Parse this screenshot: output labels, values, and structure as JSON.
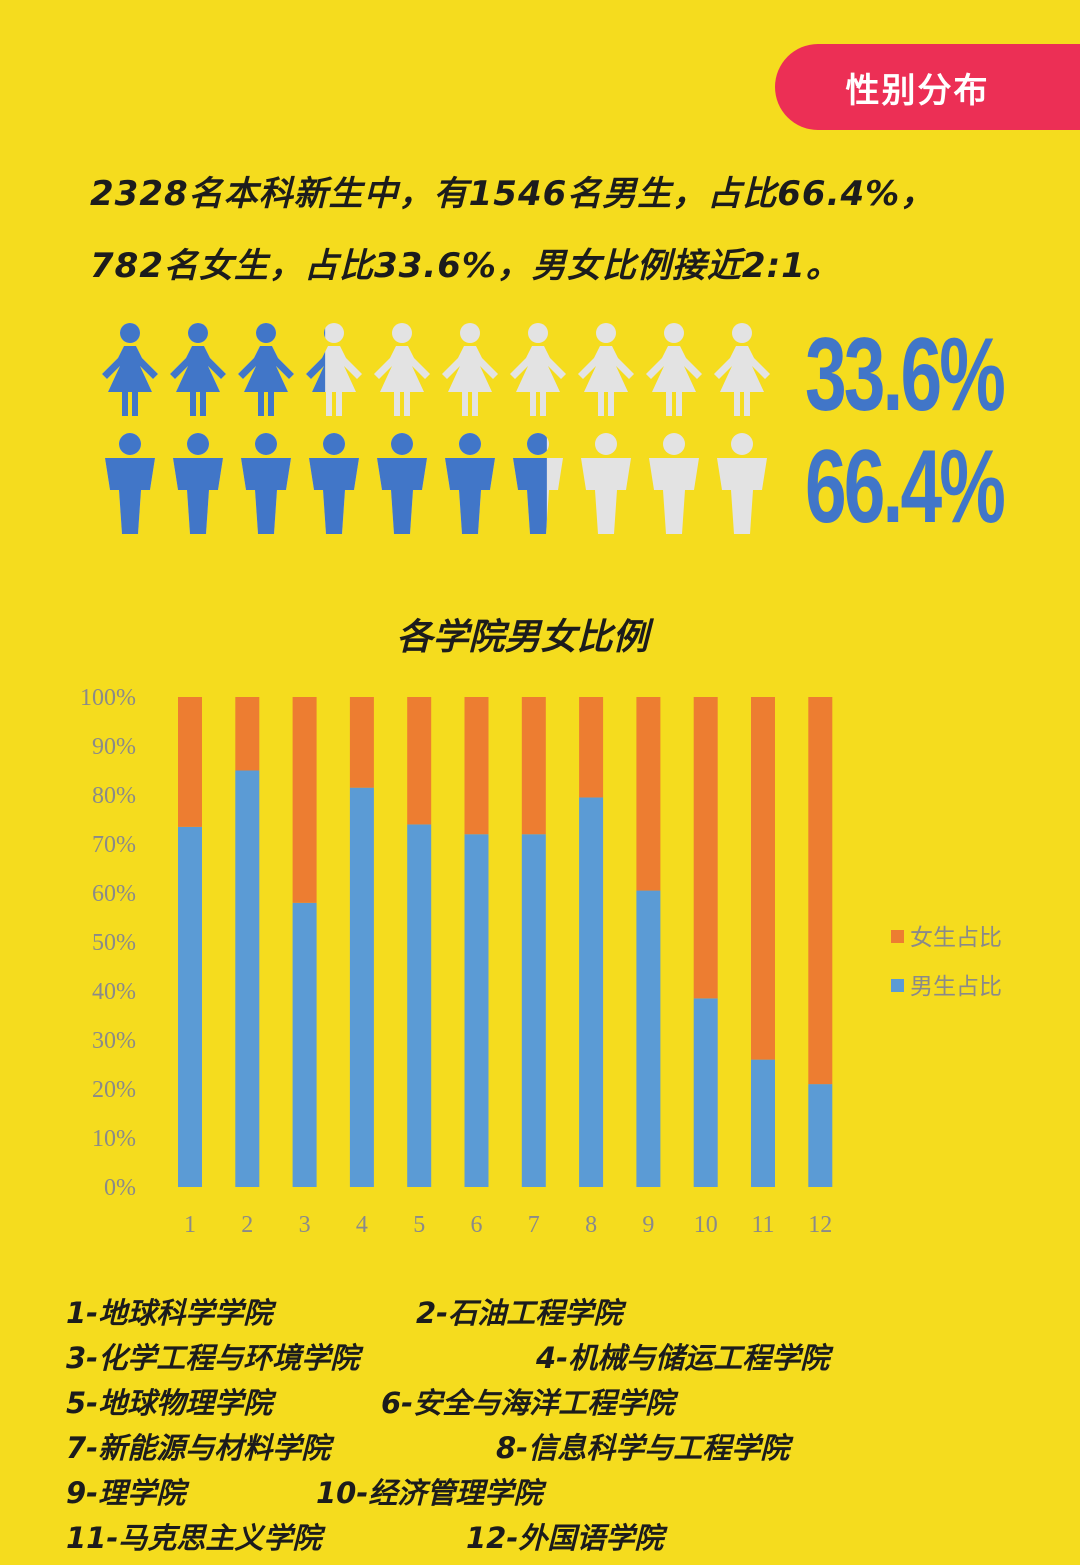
{
  "header": {
    "tag_label": "性别分布"
  },
  "intro": {
    "line1": "2328名本科新生中，有1546名男生，占比66.4%，",
    "line2": "782名女生，占比33.6%，男女比例接近2:1。"
  },
  "gender": {
    "female_pct_label": "33.6%",
    "male_pct_label": "66.4%",
    "female_fraction": 0.336,
    "male_fraction": 0.664,
    "icons_per_row": 10
  },
  "colors": {
    "background": "#f5dc1e",
    "accent_tag": "#ec2f55",
    "icon_filled": "#4176c8",
    "icon_empty": "#e3e3e3",
    "male_bar": "#5b9bd5",
    "female_bar": "#ed7d31"
  },
  "chart_data": {
    "type": "bar",
    "stacked": true,
    "title": "各学院男女比例",
    "categories": [
      "1",
      "2",
      "3",
      "4",
      "5",
      "6",
      "7",
      "8",
      "9",
      "10",
      "11",
      "12"
    ],
    "series": [
      {
        "name": "男生占比",
        "values": [
          73.5,
          85,
          58,
          81.5,
          74,
          72,
          72,
          79.5,
          60.5,
          38.5,
          26,
          21
        ],
        "color": "#5b9bd5"
      },
      {
        "name": "女生占比",
        "values": [
          26.5,
          15,
          42,
          18.5,
          26,
          28,
          28,
          20.5,
          39.5,
          61.5,
          74,
          79
        ],
        "color": "#ed7d31"
      }
    ],
    "y_tick_labels": [
      "0%",
      "10%",
      "20%",
      "30%",
      "40%",
      "50%",
      "60%",
      "70%",
      "80%",
      "90%",
      "100%"
    ],
    "ylim": [
      0,
      100
    ],
    "grid": false,
    "legend_position": "right"
  },
  "college_legend": [
    [
      "1-地球科学学院",
      "2-石油工程学院"
    ],
    [
      "3-化学工程与环境学院",
      "4-机械与储运工程学院"
    ],
    [
      "5-地球物理学院",
      "6-安全与海洋工程学院"
    ],
    [
      "7-新能源与材料学院",
      "8-信息科学与工程学院"
    ],
    [
      "9-理学院",
      "10-经济管理学院"
    ],
    [
      "11-马克思主义学院",
      "12-外国语学院"
    ]
  ]
}
